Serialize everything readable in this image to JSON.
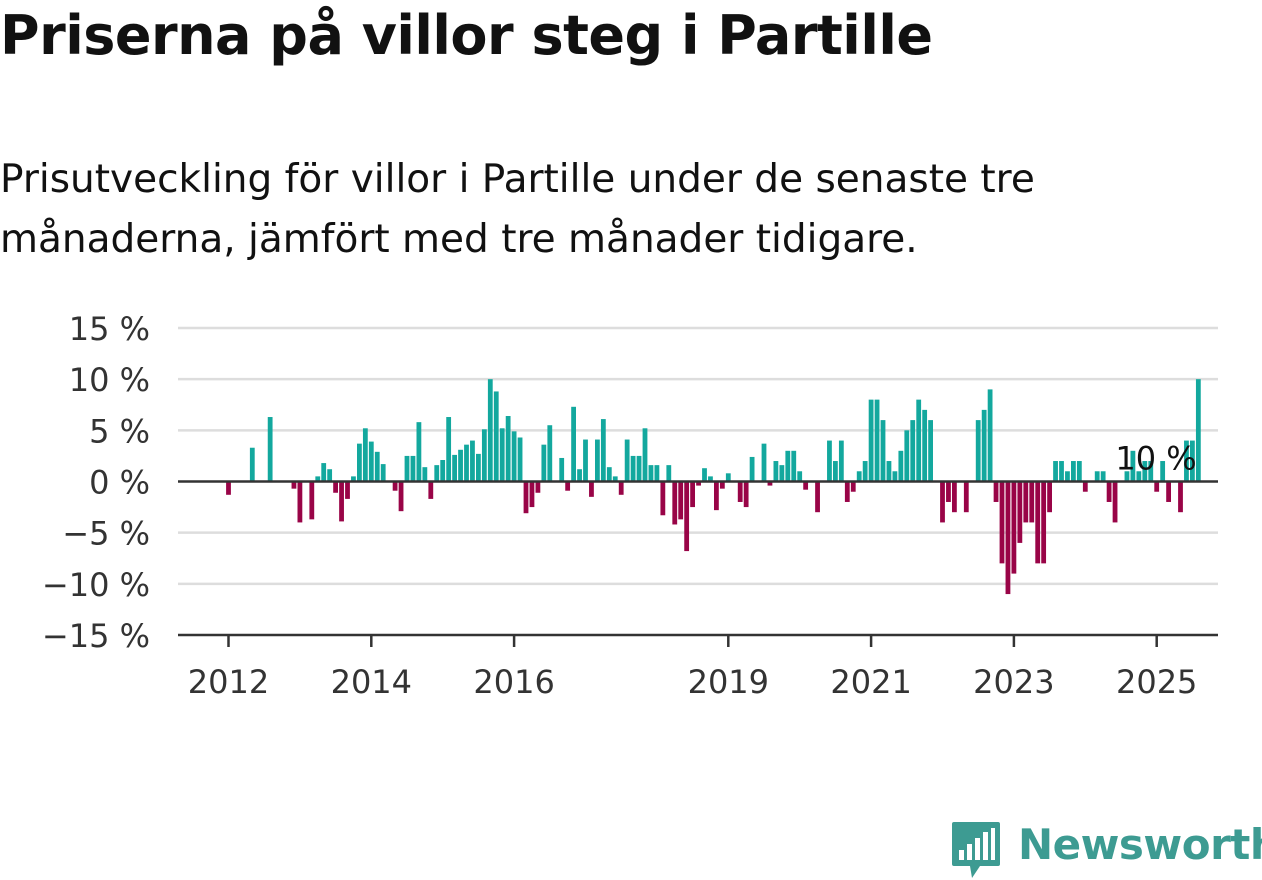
{
  "title": "Priserna på villor steg i Partille",
  "subtitle": "Prisutveckling för villor i Partille under de senaste tre månaderna, jämfört med tre månader tidigare.",
  "logo_text": "Newsworthy",
  "colors": {
    "positive": "#13a89e",
    "negative": "#990447",
    "grid": "#dddddd",
    "axis": "#333333",
    "text": "#333333",
    "logo": "#3d9b92"
  },
  "chart_data": {
    "type": "bar",
    "title": "Priserna på villor steg i Partille",
    "ylim": [
      -15,
      15
    ],
    "yticks": [
      15,
      10,
      5,
      0,
      -5,
      -10,
      -15
    ],
    "ytick_labels": [
      "15 %",
      "10 %",
      "5 %",
      "0 %",
      "−5 %",
      "−10 %",
      "−15 %"
    ],
    "xtick_labels": [
      "2012",
      "2014",
      "2016",
      "2019",
      "2021",
      "2023",
      "2025"
    ],
    "xtick_months": [
      12,
      36,
      60,
      96,
      120,
      144,
      168
    ],
    "start_month": 0,
    "annotation": {
      "text": "10 %",
      "index": 168
    },
    "values": [
      null,
      null,
      null,
      null,
      null,
      null,
      null,
      null,
      null,
      null,
      null,
      null,
      -1.3,
      null,
      null,
      null,
      3.3,
      null,
      null,
      6.3,
      null,
      null,
      null,
      -0.7,
      -4.0,
      null,
      -3.7,
      0.5,
      1.8,
      1.2,
      -1.1,
      -3.9,
      -1.7,
      0.5,
      3.7,
      5.2,
      3.9,
      2.9,
      1.7,
      null,
      -0.9,
      -2.9,
      2.5,
      2.5,
      5.8,
      1.4,
      -1.7,
      1.6,
      2.1,
      6.3,
      2.6,
      3.1,
      3.6,
      4.0,
      2.7,
      5.1,
      10.0,
      8.8,
      5.2,
      6.4,
      4.9,
      4.3,
      -3.1,
      -2.5,
      -1.1,
      3.6,
      5.5,
      null,
      2.3,
      -0.9,
      7.3,
      1.2,
      4.1,
      -1.5,
      4.1,
      6.1,
      1.4,
      0.5,
      -1.3,
      4.1,
      2.5,
      2.5,
      5.2,
      1.6,
      1.6,
      -3.3,
      1.6,
      -4.2,
      -3.7,
      -6.8,
      -2.5,
      -0.4,
      1.3,
      0.5,
      -2.8,
      -0.7,
      0.8,
      null,
      -2.0,
      -2.5,
      2.4,
      null,
      3.7,
      -0.4,
      2.0,
      1.6,
      3.0,
      3.0,
      1.0,
      -0.8,
      null,
      -3.0,
      null,
      4.0,
      2.0,
      4.0,
      -2.0,
      -1.0,
      1.0,
      2.0,
      8.0,
      8.0,
      6.0,
      2.0,
      1.0,
      3.0,
      5.0,
      6.0,
      8.0,
      7.0,
      6.0,
      null,
      -4.0,
      -2.0,
      -3.0,
      null,
      -3.0,
      null,
      6.0,
      7.0,
      9.0,
      -2.0,
      -8.0,
      -11.0,
      -9.0,
      -6.0,
      -4.0,
      -4.0,
      -8.0,
      -8.0,
      -3.0,
      2.0,
      2.0,
      1.0,
      2.0,
      2.0,
      -1.0,
      null,
      1.0,
      1.0,
      -2.0,
      -4.0,
      null,
      1.0,
      3.0,
      1.0,
      2.0,
      2.0,
      -1.0,
      2.0,
      -2.0,
      null,
      -3.0,
      4.0,
      4.0,
      10.0
    ]
  }
}
